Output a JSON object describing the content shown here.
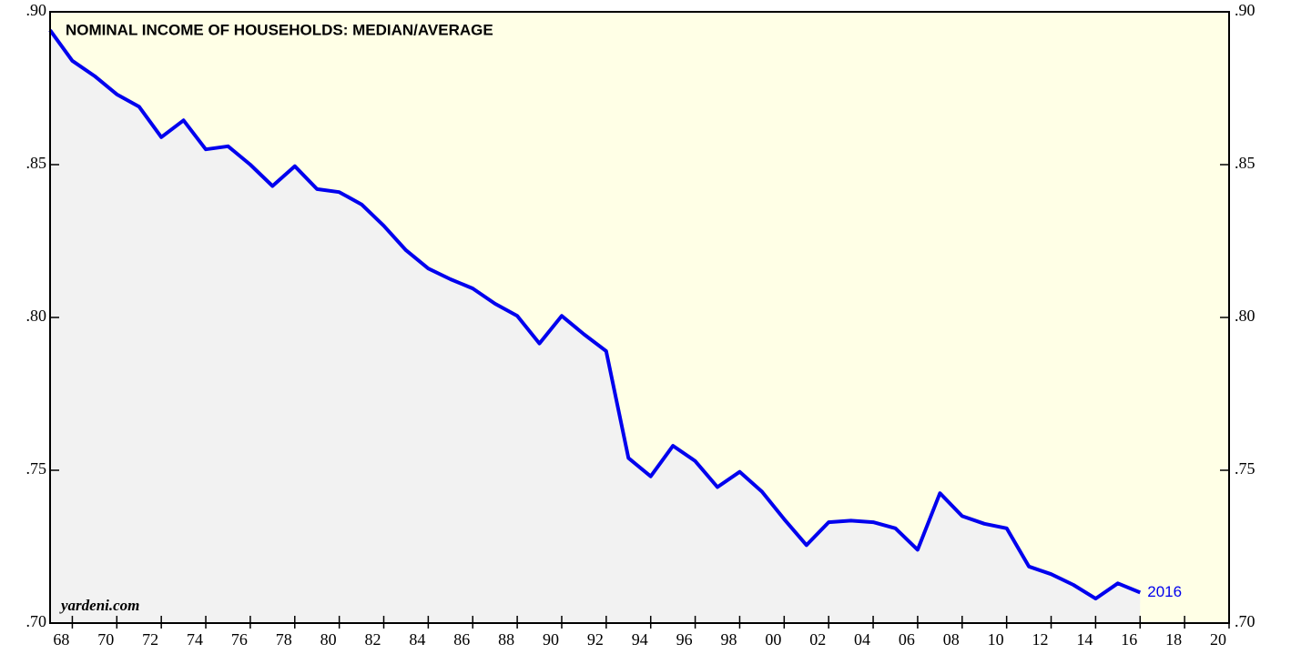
{
  "chart_data": {
    "type": "line",
    "title": "NOMINAL INCOME OF HOUSEHOLDS: MEDIAN/AVERAGE",
    "source": "yardeni.com",
    "end_label": "2016",
    "x": [
      1967,
      1968,
      1969,
      1970,
      1971,
      1972,
      1973,
      1974,
      1975,
      1976,
      1977,
      1978,
      1979,
      1980,
      1981,
      1982,
      1983,
      1984,
      1985,
      1986,
      1987,
      1988,
      1989,
      1990,
      1991,
      1992,
      1993,
      1994,
      1995,
      1996,
      1997,
      1998,
      1999,
      2000,
      2001,
      2002,
      2003,
      2004,
      2005,
      2006,
      2007,
      2008,
      2009,
      2010,
      2011,
      2012,
      2013,
      2014,
      2015,
      2016
    ],
    "series": [
      {
        "name": "Median/Average",
        "color": "#0000ee",
        "area_color": "#f2f2f2",
        "values": [
          0.894,
          0.884,
          0.879,
          0.873,
          0.869,
          0.859,
          0.8645,
          0.855,
          0.856,
          0.85,
          0.843,
          0.8495,
          0.842,
          0.841,
          0.837,
          0.83,
          0.822,
          0.816,
          0.8125,
          0.8095,
          0.8045,
          0.8005,
          0.7915,
          0.8005,
          0.7945,
          0.789,
          0.754,
          0.748,
          0.758,
          0.753,
          0.7445,
          0.7495,
          0.743,
          0.734,
          0.7255,
          0.733,
          0.7335,
          0.733,
          0.731,
          0.724,
          0.7425,
          0.735,
          0.7325,
          0.731,
          0.7185,
          0.716,
          0.7125,
          0.708,
          0.713,
          0.71
        ]
      }
    ],
    "xlim": [
      1967,
      2020
    ],
    "xticks": [
      {
        "value": 1968,
        "label": "68"
      },
      {
        "value": 1970,
        "label": "70"
      },
      {
        "value": 1972,
        "label": "72"
      },
      {
        "value": 1974,
        "label": "74"
      },
      {
        "value": 1976,
        "label": "76"
      },
      {
        "value": 1978,
        "label": "78"
      },
      {
        "value": 1980,
        "label": "80"
      },
      {
        "value": 1982,
        "label": "82"
      },
      {
        "value": 1984,
        "label": "84"
      },
      {
        "value": 1986,
        "label": "86"
      },
      {
        "value": 1988,
        "label": "88"
      },
      {
        "value": 1990,
        "label": "90"
      },
      {
        "value": 1992,
        "label": "92"
      },
      {
        "value": 1994,
        "label": "94"
      },
      {
        "value": 1996,
        "label": "96"
      },
      {
        "value": 1998,
        "label": "98"
      },
      {
        "value": 2000,
        "label": "00"
      },
      {
        "value": 2002,
        "label": "02"
      },
      {
        "value": 2004,
        "label": "04"
      },
      {
        "value": 2006,
        "label": "06"
      },
      {
        "value": 2008,
        "label": "08"
      },
      {
        "value": 2010,
        "label": "10"
      },
      {
        "value": 2012,
        "label": "12"
      },
      {
        "value": 2014,
        "label": "14"
      },
      {
        "value": 2016,
        "label": "16"
      },
      {
        "value": 2018,
        "label": "18"
      },
      {
        "value": 2020,
        "label": "20"
      }
    ],
    "ylim": [
      0.7,
      0.9
    ],
    "yticks": [
      {
        "value": 0.7,
        "label": ".70"
      },
      {
        "value": 0.75,
        "label": ".75"
      },
      {
        "value": 0.8,
        "label": ".80"
      },
      {
        "value": 0.85,
        "label": ".85"
      },
      {
        "value": 0.9,
        "label": ".90"
      }
    ],
    "background": "#ffffe6"
  }
}
